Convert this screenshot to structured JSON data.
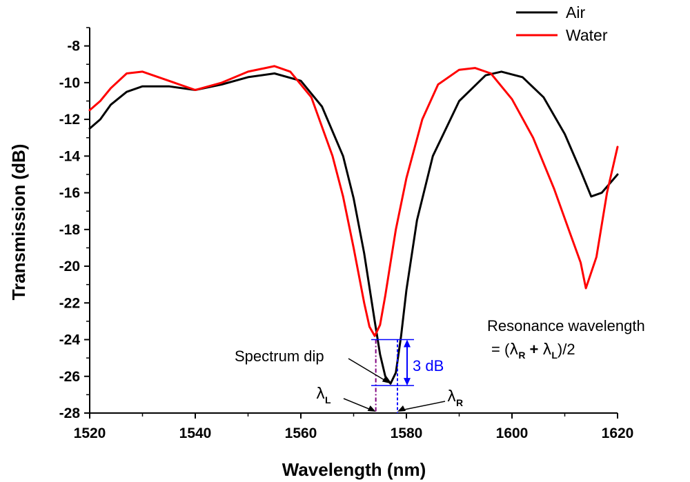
{
  "chart_data": {
    "type": "line",
    "title": "",
    "xlabel": "Wavelength (nm)",
    "ylabel": "Transmission (dB)",
    "xlim": [
      1520,
      1620
    ],
    "ylim": [
      -28,
      -7
    ],
    "x_ticks": [
      1520,
      1540,
      1560,
      1580,
      1600,
      1620
    ],
    "y_ticks": [
      -28,
      -26,
      -24,
      -22,
      -20,
      -18,
      -16,
      -14,
      -12,
      -10,
      -8
    ],
    "grid": false,
    "legend_position": "top-right",
    "series": [
      {
        "name": "Air",
        "color": "#000000",
        "x": [
          1520,
          1522,
          1524,
          1527,
          1530,
          1535,
          1540,
          1545,
          1550,
          1555,
          1560,
          1564,
          1568,
          1570,
          1572,
          1574,
          1575,
          1576,
          1577,
          1578,
          1579,
          1580,
          1582,
          1585,
          1590,
          1595,
          1598,
          1602,
          1606,
          1610,
          1613,
          1615,
          1617,
          1620
        ],
        "y": [
          -12.5,
          -12.0,
          -11.2,
          -10.5,
          -10.2,
          -10.2,
          -10.4,
          -10.1,
          -9.7,
          -9.5,
          -9.9,
          -11.3,
          -14.0,
          -16.3,
          -19.3,
          -23.0,
          -24.8,
          -26.0,
          -26.4,
          -25.8,
          -23.8,
          -21.3,
          -17.5,
          -14.0,
          -11.0,
          -9.6,
          -9.4,
          -9.7,
          -10.8,
          -12.8,
          -14.8,
          -16.2,
          -16.0,
          -15.0
        ]
      },
      {
        "name": "Water",
        "color": "#ff0000",
        "x": [
          1520,
          1522,
          1524,
          1527,
          1530,
          1535,
          1540,
          1545,
          1550,
          1555,
          1558,
          1562,
          1566,
          1568,
          1570,
          1572,
          1573,
          1574,
          1575,
          1576,
          1577,
          1578,
          1580,
          1583,
          1586,
          1590,
          1593,
          1596,
          1600,
          1604,
          1608,
          1611,
          1613,
          1614,
          1616,
          1618,
          1620
        ],
        "y": [
          -11.5,
          -11.0,
          -10.3,
          -9.5,
          -9.4,
          -9.9,
          -10.4,
          -10.0,
          -9.4,
          -9.1,
          -9.4,
          -10.8,
          -14.0,
          -16.2,
          -19.0,
          -22.0,
          -23.3,
          -23.8,
          -23.2,
          -21.6,
          -19.8,
          -18.0,
          -15.2,
          -12.0,
          -10.1,
          -9.3,
          -9.2,
          -9.5,
          -10.9,
          -13.0,
          -15.8,
          -18.2,
          -19.8,
          -21.2,
          -19.5,
          -16.0,
          -13.5
        ]
      }
    ],
    "annotations": {
      "spectrum_dip": "Spectrum dip",
      "three_db": "3 dB",
      "three_db_range": [
        -26.5,
        -24.0
      ],
      "lambda_left_x": 1574.2,
      "lambda_right_x": 1578.3,
      "dip_x": 1577.1,
      "dip_y": -26.4,
      "resonance_line1": "Resonance wavelength",
      "resonance_prefix": "= (",
      "lambda_symbol": "λ",
      "sub_R": "R",
      "sub_L": "L",
      "plus": "+",
      "resonance_suffix": ")/2",
      "marker_color": "#0000ff",
      "left_marker_color": "#800080"
    }
  }
}
